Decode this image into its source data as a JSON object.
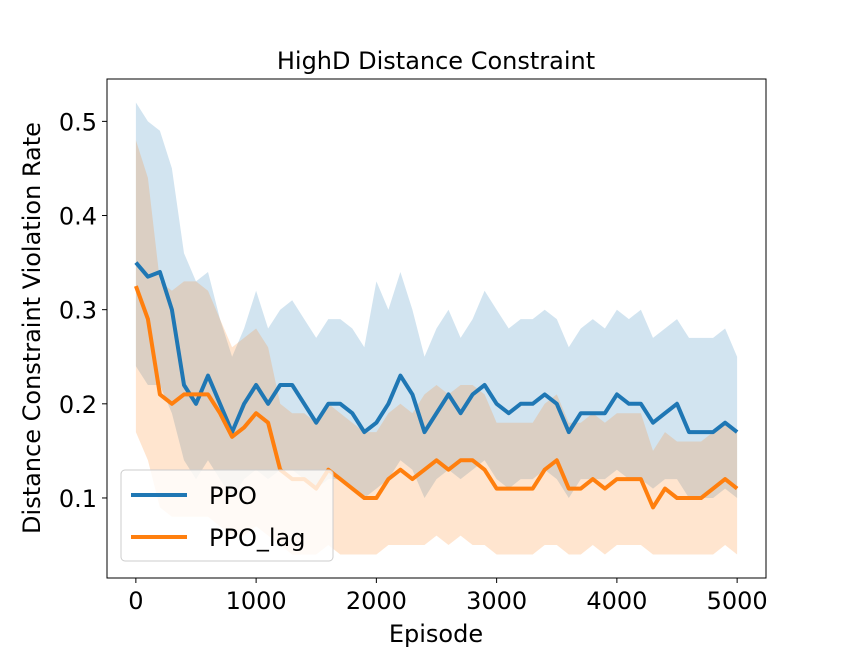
{
  "chart_data": {
    "type": "line",
    "title": "HighD Distance Constraint",
    "xlabel": "Episode",
    "ylabel": "Distance Constraint Violation Rate",
    "xlim": [
      -240,
      5240
    ],
    "ylim": [
      0.015,
      0.545
    ],
    "xticks": [
      0,
      1000,
      2000,
      3000,
      4000,
      5000
    ],
    "xtick_labels": [
      "0",
      "1000",
      "2000",
      "3000",
      "4000",
      "5000"
    ],
    "yticks": [
      0.1,
      0.2,
      0.3,
      0.4,
      0.5
    ],
    "ytick_labels": [
      "0.1",
      "0.2",
      "0.3",
      "0.4",
      "0.5"
    ],
    "legend_position": "lower-left",
    "x": [
      0,
      100,
      200,
      300,
      400,
      500,
      600,
      700,
      800,
      900,
      1000,
      1100,
      1200,
      1300,
      1400,
      1500,
      1600,
      1700,
      1800,
      1900,
      2000,
      2100,
      2200,
      2300,
      2400,
      2500,
      2600,
      2700,
      2800,
      2900,
      3000,
      3100,
      3200,
      3300,
      3400,
      3500,
      3600,
      3700,
      3800,
      3900,
      4000,
      4100,
      4200,
      4300,
      4400,
      4500,
      4600,
      4700,
      4800,
      4900,
      5000
    ],
    "series": [
      {
        "name": "PPO",
        "color": "#1f77b4",
        "values": [
          0.35,
          0.335,
          0.34,
          0.3,
          0.22,
          0.2,
          0.23,
          0.2,
          0.17,
          0.2,
          0.22,
          0.2,
          0.22,
          0.22,
          0.2,
          0.18,
          0.2,
          0.2,
          0.19,
          0.17,
          0.18,
          0.2,
          0.23,
          0.21,
          0.17,
          0.19,
          0.21,
          0.19,
          0.21,
          0.22,
          0.2,
          0.19,
          0.2,
          0.2,
          0.21,
          0.2,
          0.17,
          0.19,
          0.19,
          0.19,
          0.21,
          0.2,
          0.2,
          0.18,
          0.19,
          0.2,
          0.17,
          0.17,
          0.17,
          0.18,
          0.17
        ],
        "band_upper": [
          0.52,
          0.5,
          0.49,
          0.45,
          0.36,
          0.33,
          0.34,
          0.29,
          0.25,
          0.28,
          0.32,
          0.28,
          0.3,
          0.31,
          0.29,
          0.27,
          0.29,
          0.29,
          0.28,
          0.26,
          0.33,
          0.3,
          0.34,
          0.3,
          0.25,
          0.28,
          0.3,
          0.27,
          0.29,
          0.32,
          0.3,
          0.28,
          0.29,
          0.29,
          0.3,
          0.29,
          0.26,
          0.28,
          0.29,
          0.28,
          0.3,
          0.29,
          0.3,
          0.27,
          0.28,
          0.29,
          0.27,
          0.27,
          0.27,
          0.28,
          0.25
        ],
        "band_lower": [
          0.24,
          0.22,
          0.22,
          0.19,
          0.14,
          0.12,
          0.14,
          0.12,
          0.1,
          0.12,
          0.13,
          0.12,
          0.13,
          0.13,
          0.12,
          0.11,
          0.12,
          0.12,
          0.11,
          0.1,
          0.11,
          0.12,
          0.14,
          0.13,
          0.1,
          0.12,
          0.13,
          0.12,
          0.13,
          0.14,
          0.12,
          0.11,
          0.12,
          0.12,
          0.13,
          0.12,
          0.1,
          0.12,
          0.12,
          0.12,
          0.13,
          0.12,
          0.12,
          0.11,
          0.12,
          0.12,
          0.1,
          0.1,
          0.1,
          0.11,
          0.1
        ]
      },
      {
        "name": "PPO_lag",
        "color": "#ff7f0e",
        "values": [
          0.325,
          0.29,
          0.21,
          0.2,
          0.21,
          0.21,
          0.21,
          0.19,
          0.165,
          0.175,
          0.19,
          0.18,
          0.13,
          0.12,
          0.12,
          0.11,
          0.13,
          0.12,
          0.11,
          0.1,
          0.1,
          0.12,
          0.13,
          0.12,
          0.13,
          0.14,
          0.13,
          0.14,
          0.14,
          0.13,
          0.11,
          0.11,
          0.11,
          0.11,
          0.13,
          0.14,
          0.11,
          0.11,
          0.12,
          0.11,
          0.12,
          0.12,
          0.12,
          0.09,
          0.11,
          0.1,
          0.1,
          0.1,
          0.11,
          0.12,
          0.11
        ],
        "band_upper": [
          0.48,
          0.44,
          0.33,
          0.32,
          0.33,
          0.33,
          0.32,
          0.29,
          0.26,
          0.27,
          0.28,
          0.26,
          0.2,
          0.19,
          0.19,
          0.18,
          0.2,
          0.19,
          0.18,
          0.17,
          0.17,
          0.19,
          0.2,
          0.19,
          0.21,
          0.22,
          0.21,
          0.22,
          0.22,
          0.21,
          0.18,
          0.18,
          0.18,
          0.18,
          0.2,
          0.21,
          0.18,
          0.18,
          0.19,
          0.18,
          0.19,
          0.19,
          0.19,
          0.15,
          0.17,
          0.16,
          0.16,
          0.16,
          0.17,
          0.18,
          0.17
        ],
        "band_lower": [
          0.17,
          0.14,
          0.09,
          0.08,
          0.08,
          0.08,
          0.08,
          0.07,
          0.06,
          0.06,
          0.07,
          0.06,
          0.05,
          0.04,
          0.04,
          0.04,
          0.05,
          0.04,
          0.04,
          0.04,
          0.04,
          0.05,
          0.05,
          0.05,
          0.05,
          0.06,
          0.05,
          0.06,
          0.05,
          0.05,
          0.04,
          0.04,
          0.04,
          0.04,
          0.05,
          0.05,
          0.04,
          0.04,
          0.05,
          0.04,
          0.05,
          0.05,
          0.05,
          0.04,
          0.04,
          0.04,
          0.04,
          0.04,
          0.04,
          0.05,
          0.04
        ]
      }
    ]
  }
}
